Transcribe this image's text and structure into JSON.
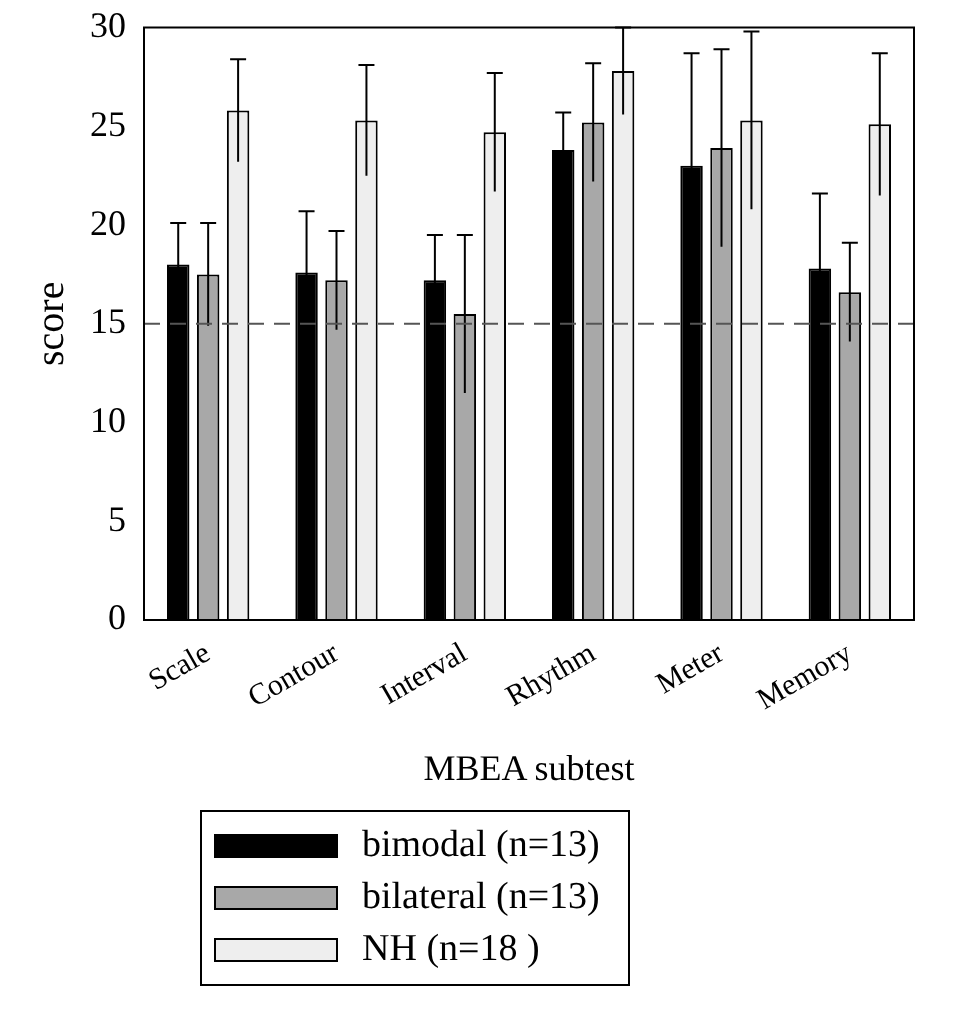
{
  "chart_data": {
    "type": "bar",
    "xlabel": "MBEA subtest",
    "ylabel": "score",
    "categories": [
      "Scale",
      "Contour",
      "Interval",
      "Rhythm",
      "Meter",
      "Memory"
    ],
    "series": [
      {
        "name": "bimodal (n=13)",
        "color": "#000000",
        "values": [
          18.0,
          17.6,
          17.2,
          23.8,
          23.0,
          17.8
        ],
        "errors": [
          2.1,
          3.1,
          2.3,
          1.9,
          5.7,
          3.8
        ]
      },
      {
        "name": "bilateral (n=13)",
        "color": "#a8a8a8",
        "values": [
          17.5,
          17.2,
          15.5,
          25.2,
          23.9,
          16.6
        ],
        "errors": [
          2.6,
          2.5,
          4.0,
          3.0,
          5.0,
          2.5
        ]
      },
      {
        "name": "NH (n=18 )",
        "color": "#eeeeee",
        "values": [
          25.8,
          25.3,
          24.7,
          27.8,
          25.3,
          25.1
        ],
        "errors": [
          2.6,
          2.8,
          3.0,
          2.2,
          4.5,
          3.6
        ]
      }
    ],
    "ylim": [
      0,
      30
    ],
    "yticks": [
      0,
      5,
      10,
      15,
      20,
      25,
      30
    ],
    "grid": false,
    "legend": "bottom",
    "ref_lines": [
      {
        "axis": "y",
        "value": 15,
        "line_style": "dashed",
        "color": "#555555"
      }
    ]
  }
}
